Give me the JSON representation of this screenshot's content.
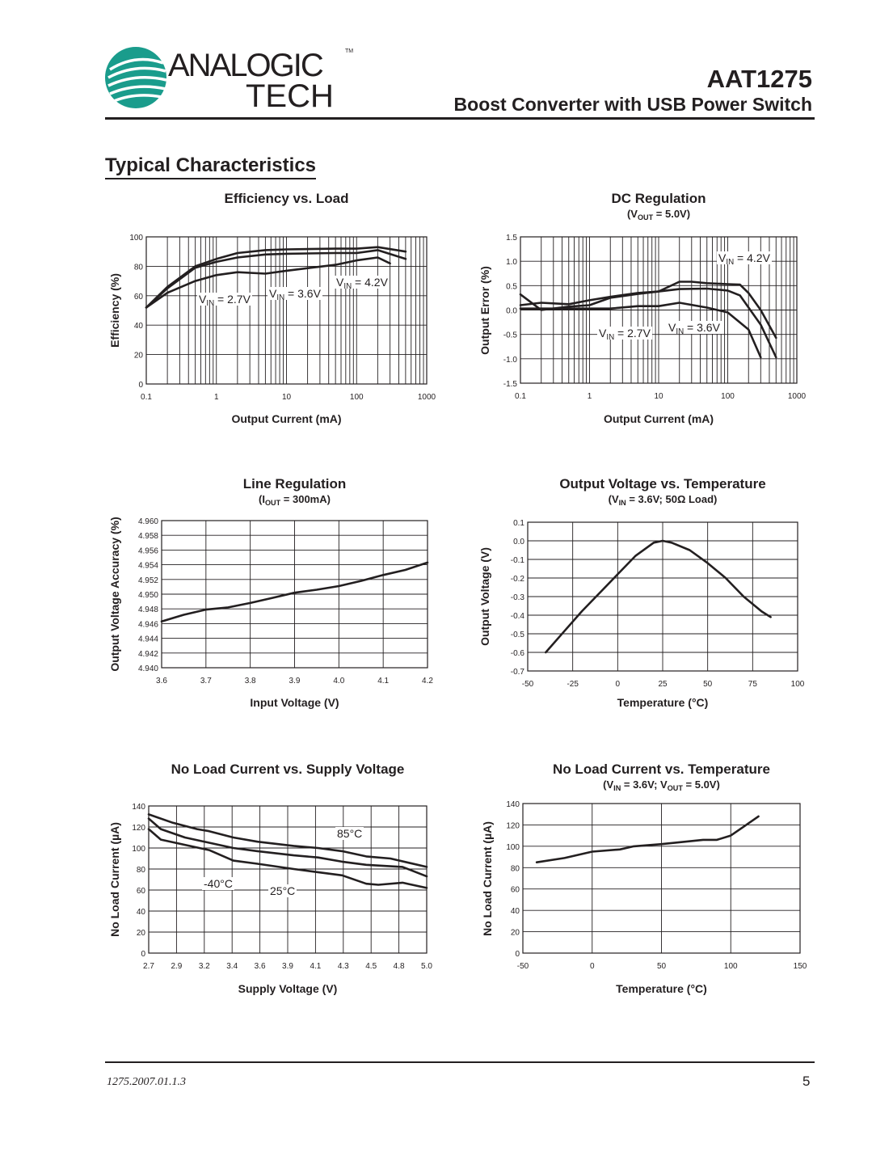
{
  "header": {
    "logo": {
      "line1": "ANALOGIC",
      "line2": "TECH",
      "tm": "TM",
      "color": "#1a9c8c"
    },
    "part": "AAT1275",
    "subtitle": "Boost Converter with USB Power Switch"
  },
  "section_title": "Typical Characteristics",
  "footer": {
    "doc_code": "1275.2007.01.1.3",
    "page": "5"
  },
  "chart_data": [
    {
      "type": "line",
      "title": "Efficiency vs. Load",
      "subtitle": "",
      "xlabel": "Output Current (mA)",
      "ylabel": "Efficiency (%)",
      "xscale": "log",
      "xlim": [
        0.1,
        1000
      ],
      "ylim": [
        0,
        100
      ],
      "grid": true,
      "xtick_labels": [
        "0.1",
        "1",
        "10",
        "100",
        "1000"
      ],
      "ytick_labels": [
        "0",
        "20",
        "40",
        "60",
        "80",
        "100"
      ],
      "annotations": [
        {
          "prefix": "V",
          "sub": "IN",
          "suffix": " = 2.7V"
        },
        {
          "prefix": "V",
          "sub": "IN",
          "suffix": " = 3.6V"
        },
        {
          "prefix": "V",
          "sub": "IN",
          "suffix": " = 4.2V"
        }
      ],
      "series": [
        {
          "name": "VIN = 4.2V",
          "x": [
            0.1,
            0.2,
            0.5,
            1,
            2,
            5,
            10,
            50,
            100,
            200,
            500
          ],
          "y": [
            52,
            66,
            80,
            85,
            89,
            91,
            91.5,
            92,
            92,
            93,
            90
          ]
        },
        {
          "name": "VIN = 3.6V",
          "x": [
            0.1,
            0.2,
            0.5,
            1,
            2,
            5,
            10,
            50,
            100,
            200,
            500
          ],
          "y": [
            52,
            65,
            79,
            83,
            86,
            88,
            88.5,
            89,
            89,
            91,
            85
          ]
        },
        {
          "name": "VIN = 2.7V",
          "x": [
            0.1,
            0.2,
            0.5,
            1,
            2,
            5,
            10,
            50,
            100,
            200,
            300
          ],
          "y": [
            52,
            62,
            70,
            74,
            76,
            75,
            77,
            81,
            84,
            86,
            82
          ]
        }
      ]
    },
    {
      "type": "line",
      "title": "DC Regulation",
      "subtitle": {
        "prefix": "(V",
        "sub": "OUT",
        "suffix": " = 5.0V)"
      },
      "xlabel": "Output Current (mA)",
      "ylabel": "Output Error (%)",
      "xscale": "log",
      "xlim": [
        0.1,
        1000
      ],
      "ylim": [
        -1.5,
        1.5
      ],
      "grid": true,
      "xtick_labels": [
        "0.1",
        "1",
        "10",
        "100",
        "1000"
      ],
      "ytick_labels": [
        "-1.5",
        "-1.0",
        "-0.5",
        "0.0",
        "0.5",
        "1.0",
        "1.5"
      ],
      "annotations": [
        {
          "prefix": "V",
          "sub": "IN",
          "suffix": " = 4.2V"
        },
        {
          "prefix": "V",
          "sub": "IN",
          "suffix": " = 2.7V"
        },
        {
          "prefix": "V",
          "sub": "IN",
          "suffix": " = 3.6V"
        }
      ],
      "series": [
        {
          "name": "VIN = 4.2V",
          "x": [
            0.1,
            0.2,
            0.5,
            1,
            2,
            5,
            10,
            20,
            30,
            50,
            100,
            150,
            200,
            300,
            500
          ],
          "y": [
            0.1,
            0.15,
            0.12,
            0.2,
            0.27,
            0.35,
            0.38,
            0.58,
            0.58,
            0.55,
            0.53,
            0.52,
            0.35,
            0,
            -0.57
          ]
        },
        {
          "name": "VIN = 3.6V",
          "x": [
            0.1,
            0.2,
            0.5,
            1,
            2,
            5,
            10,
            20,
            50,
            100,
            150,
            300,
            500
          ],
          "y": [
            0.32,
            0,
            0.07,
            0.1,
            0.25,
            0.33,
            0.38,
            0.43,
            0.44,
            0.4,
            0.3,
            -0.3,
            -0.97
          ]
        },
        {
          "name": "VIN = 2.7V",
          "x": [
            0.1,
            0.5,
            1,
            2,
            5,
            10,
            20,
            50,
            100,
            200,
            300
          ],
          "y": [
            0.03,
            0.03,
            0.03,
            0.03,
            0.08,
            0.08,
            0.15,
            0.05,
            -0.05,
            -0.4,
            -0.97
          ]
        }
      ]
    },
    {
      "type": "line",
      "title": "Line Regulation",
      "subtitle": {
        "prefix": "(I",
        "sub": "OUT",
        "suffix": " = 300mA)"
      },
      "xlabel": "Input Voltage (V)",
      "ylabel": "Output Voltage Accuracy (%)",
      "xscale": "linear",
      "xlim": [
        3.6,
        4.2
      ],
      "ylim": [
        4.94,
        4.96
      ],
      "grid": true,
      "xtick_labels": [
        "3.6",
        "3.7",
        "3.8",
        "3.9",
        "4.0",
        "4.1",
        "4.2"
      ],
      "ytick_labels": [
        "4.940",
        "4.942",
        "4.944",
        "4.946",
        "4.948",
        "4.950",
        "4.952",
        "4.954",
        "4.956",
        "4.958",
        "4.960"
      ],
      "annotations": [],
      "series": [
        {
          "x": [
            3.6,
            3.65,
            3.7,
            3.75,
            3.8,
            3.85,
            3.9,
            3.95,
            4.0,
            4.05,
            4.1,
            4.15,
            4.2
          ],
          "y": [
            4.9463,
            4.9472,
            4.9479,
            4.9482,
            4.9488,
            4.9495,
            4.9502,
            4.9506,
            4.9511,
            4.9518,
            4.9526,
            4.9533,
            4.9543
          ]
        }
      ]
    },
    {
      "type": "line",
      "title": "Output Voltage vs. Temperature",
      "subtitle": {
        "prefix": "(V",
        "sub": "IN",
        "suffix": " = 3.6V; 50Ω Load)"
      },
      "xlabel": "Temperature (°C)",
      "ylabel": "Output Voltage (V)",
      "xscale": "linear",
      "xlim": [
        -50,
        100
      ],
      "ylim": [
        -0.7,
        0.1
      ],
      "grid": true,
      "xtick_labels": [
        "-50",
        "-25",
        "0",
        "25",
        "50",
        "75",
        "100"
      ],
      "ytick_labels": [
        "-0.7",
        "-0.6",
        "-0.5",
        "-0.4",
        "-0.3",
        "-0.2",
        "-0.1",
        "0.0",
        "0.1"
      ],
      "annotations": [],
      "series": [
        {
          "x": [
            -40,
            -30,
            -20,
            -10,
            0,
            10,
            20,
            25,
            30,
            40,
            50,
            60,
            70,
            80,
            85
          ],
          "y": [
            -0.6,
            -0.49,
            -0.38,
            -0.28,
            -0.18,
            -0.08,
            -0.01,
            0,
            -0.01,
            -0.05,
            -0.12,
            -0.2,
            -0.3,
            -0.38,
            -0.41
          ]
        }
      ]
    },
    {
      "type": "line",
      "title": "No Load Current vs. Supply Voltage",
      "subtitle": "",
      "xlabel": "Supply Voltage (V)",
      "ylabel": "No Load Current (µA)",
      "xscale": "linear",
      "xlim": [
        2.7,
        5.0
      ],
      "ylim": [
        0,
        140
      ],
      "grid": true,
      "xtick_labels": [
        "2.7",
        "2.9",
        "3.2",
        "3.4",
        "3.6",
        "3.9",
        "4.1",
        "4.3",
        "4.5",
        "4.8",
        "5.0"
      ],
      "ytick_labels": [
        "0",
        "20",
        "40",
        "60",
        "80",
        "100",
        "120",
        "140"
      ],
      "annotations": [
        {
          "prefix": "85°C"
        },
        {
          "prefix": "-40°C"
        },
        {
          "prefix": "25°C"
        }
      ],
      "series": [
        {
          "name": "85°C",
          "x": [
            2.7,
            2.9,
            3.1,
            3.2,
            3.4,
            3.6,
            3.9,
            4.1,
            4.3,
            4.5,
            4.7,
            5.0
          ],
          "y": [
            132,
            124,
            118,
            116,
            110,
            106,
            102,
            100,
            97,
            92,
            90,
            82
          ]
        },
        {
          "name": "25°C",
          "x": [
            2.7,
            2.8,
            3.0,
            3.4,
            3.6,
            3.9,
            4.1,
            4.3,
            4.5,
            4.8,
            5.0
          ],
          "y": [
            128,
            118,
            110,
            100,
            97,
            93,
            91,
            87,
            84,
            82,
            73
          ]
        },
        {
          "name": "-40°C",
          "x": [
            2.7,
            2.8,
            3.2,
            3.4,
            3.6,
            3.9,
            4.1,
            4.3,
            4.5,
            4.6,
            4.8,
            5.0
          ],
          "y": [
            118,
            108,
            98,
            88,
            85,
            80,
            77,
            74,
            66,
            65,
            67,
            62
          ]
        }
      ]
    },
    {
      "type": "line",
      "title": "No Load Current vs. Temperature",
      "subtitle": {
        "prefix": "(V",
        "sub": "IN",
        "suffix": " = 3.6V; V",
        "sub2": "OUT",
        "suffix2": " = 5.0V)"
      },
      "xlabel": "Temperature (°C)",
      "ylabel": "No Load Current (µA)",
      "xscale": "linear",
      "xlim": [
        -50,
        150
      ],
      "ylim": [
        0,
        140
      ],
      "grid": true,
      "xtick_labels": [
        "-50",
        "0",
        "50",
        "100",
        "150"
      ],
      "ytick_labels": [
        "0",
        "20",
        "40",
        "60",
        "80",
        "100",
        "120",
        "140"
      ],
      "annotations": [],
      "series": [
        {
          "x": [
            -40,
            -20,
            0,
            20,
            30,
            50,
            80,
            90,
            100,
            110,
            120
          ],
          "y": [
            85,
            89,
            95,
            97,
            100,
            102,
            106,
            106,
            110,
            119,
            128
          ]
        }
      ]
    }
  ]
}
